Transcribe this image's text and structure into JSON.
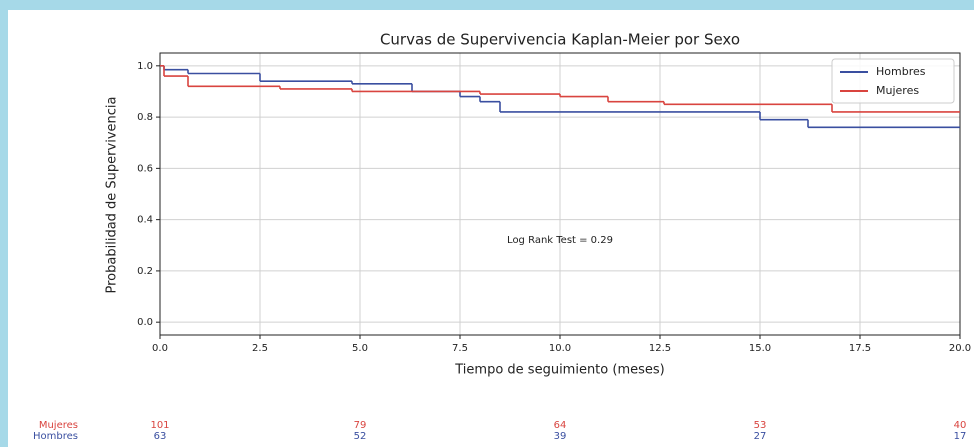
{
  "chart_data": {
    "type": "step",
    "title": "Curvas de Supervivencia Kaplan-Meier por Sexo",
    "xlabel": "Tiempo de seguimiento (meses)",
    "ylabel": "Probabilidad de Supervivencia",
    "annotation": "Log Rank Test = 0.29",
    "xlim": [
      0,
      20
    ],
    "ylim": [
      -0.05,
      1.05
    ],
    "xticks": [
      {
        "value": 0,
        "label": "0.0"
      },
      2.5,
      {
        "value": 5,
        "label": "5.0"
      },
      7.5,
      {
        "value": 10,
        "label": "10.0"
      },
      12.5,
      {
        "value": 15,
        "label": "15.0"
      },
      17.5,
      {
        "value": 20,
        "label": "20.0"
      }
    ],
    "yticks": [
      {
        "value": 0,
        "label": "0.0"
      },
      0.2,
      0.4,
      0.6,
      0.8,
      {
        "value": 1,
        "label": "1.0"
      }
    ],
    "grid": true,
    "legend": "upper right",
    "series": [
      {
        "name": "Hombres",
        "color": "#3a4fa0",
        "x": [
          0,
          0.1,
          0.7,
          2.5,
          4.8,
          6.3,
          7.5,
          8.0,
          8.5,
          15.0,
          16.2
        ],
        "values": [
          1.0,
          0.985,
          0.97,
          0.94,
          0.93,
          0.9,
          0.88,
          0.86,
          0.82,
          0.79,
          0.76
        ]
      },
      {
        "name": "Mujeres",
        "color": "#d9443f",
        "x": [
          0,
          0.1,
          0.7,
          3.0,
          4.8,
          8.0,
          10.0,
          11.2,
          12.6,
          16.8
        ],
        "values": [
          1.0,
          0.96,
          0.92,
          0.91,
          0.9,
          0.89,
          0.88,
          0.86,
          0.85,
          0.82
        ]
      }
    ],
    "risk_table": [
      {
        "name": "Mujeres",
        "color": "#d9443f",
        "values": [
          101,
          79,
          64,
          53,
          40
        ]
      },
      {
        "name": "Hombres",
        "color": "#3a4fa0",
        "values": [
          63,
          52,
          39,
          27,
          17
        ]
      }
    ]
  }
}
